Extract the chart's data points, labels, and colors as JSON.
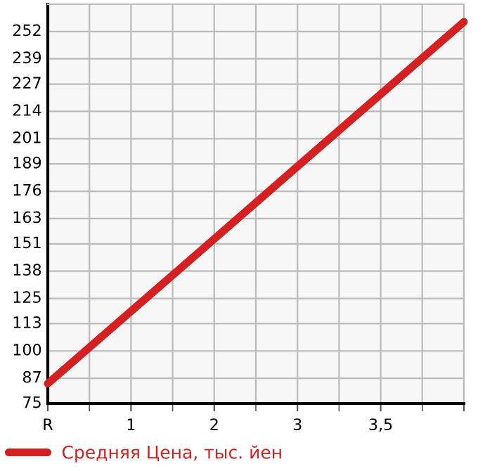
{
  "chart_data": {
    "type": "line",
    "categories": [
      "R",
      "1",
      "2",
      "3",
      "3,5",
      null
    ],
    "series": [
      {
        "name": "Средняя Цена, тыс. йен",
        "color": "#d42020",
        "values": [
          84.5,
          118.9,
          153.3,
          187.8,
          222.2,
          256.6
        ]
      }
    ],
    "ylim": [
      75,
      265
    ],
    "yticks": [
      75,
      87,
      100,
      113,
      125,
      138,
      151,
      163,
      176,
      189,
      201,
      214,
      227,
      239,
      252
    ],
    "grid": true,
    "legend": "bottom left",
    "marker": "none",
    "line_style": "solid"
  }
}
